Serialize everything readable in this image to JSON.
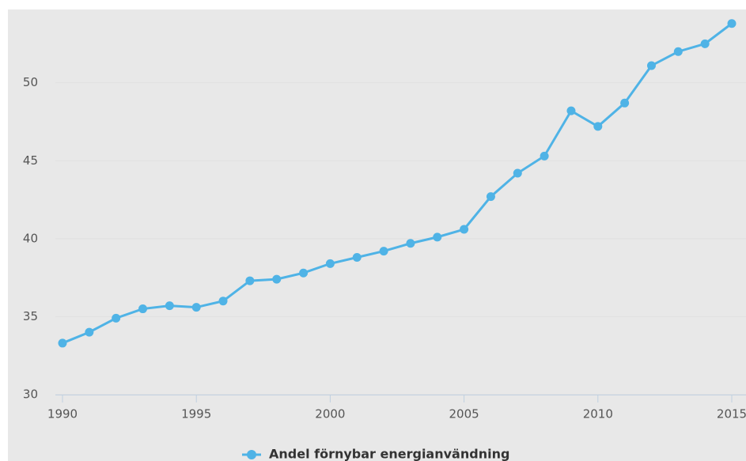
{
  "chart_data": {
    "type": "line",
    "x": [
      1990,
      1991,
      1992,
      1993,
      1994,
      1995,
      1996,
      1997,
      1998,
      1999,
      2000,
      2001,
      2002,
      2003,
      2004,
      2005,
      2006,
      2007,
      2008,
      2009,
      2010,
      2011,
      2012,
      2013,
      2014,
      2015
    ],
    "series": [
      {
        "name": "Andel förnybar energianvändning",
        "color": "#4fb3e6",
        "values": [
          33.3,
          34.0,
          34.9,
          35.5,
          35.7,
          35.6,
          36.0,
          37.3,
          37.4,
          37.8,
          38.4,
          38.8,
          39.2,
          39.7,
          40.1,
          40.6,
          42.7,
          44.2,
          45.3,
          48.2,
          47.2,
          48.7,
          51.1,
          52.0,
          52.5,
          53.8
        ]
      }
    ],
    "xlim": [
      1990,
      2015
    ],
    "xticks": [
      1990,
      1995,
      2000,
      2005,
      2010,
      2015
    ],
    "ylim": [
      30,
      54.7
    ],
    "yticks": [
      30,
      35,
      40,
      45,
      50
    ],
    "grid": true
  }
}
